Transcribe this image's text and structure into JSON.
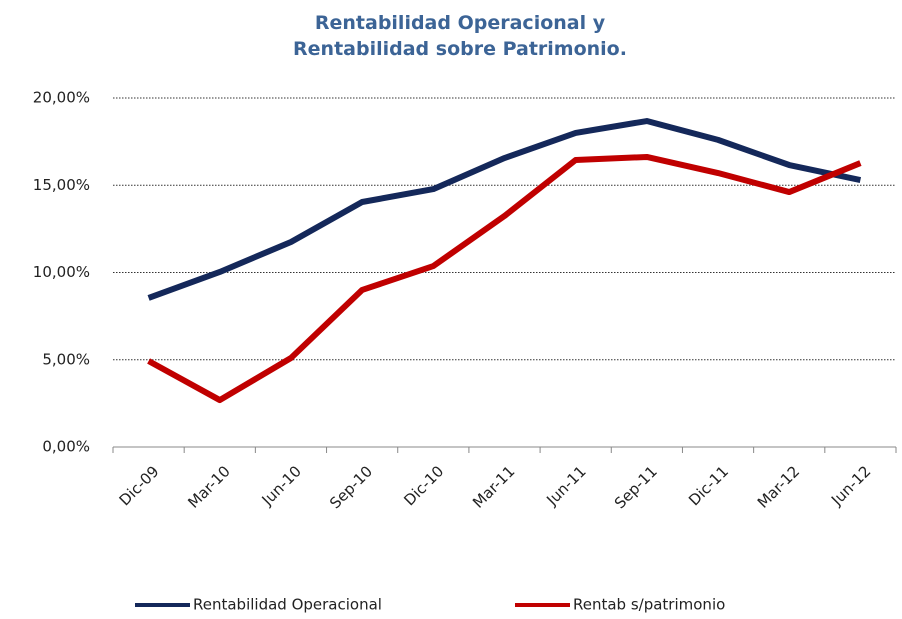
{
  "chart_data": {
    "type": "line",
    "title": "Rentabilidad Operacional y Rentabilidad sobre Patrimonio.",
    "categories": [
      "Dic-09",
      "Mar-10",
      "Jun-10",
      "Sep-10",
      "Dic-10",
      "Mar-11",
      "Jun-11",
      "Sep-11",
      "Dic-11",
      "Mar-12",
      "Jun-12"
    ],
    "series": [
      {
        "name": "Rentabilidad Operacional",
        "color": "#14285a",
        "values": [
          8.54,
          10.03,
          11.75,
          14.04,
          14.78,
          16.56,
          18.0,
          18.68,
          17.6,
          16.16,
          15.3
        ]
      },
      {
        "name": "Rentab s/patrimonio",
        "color": "#c00000",
        "values": [
          4.93,
          2.69,
          5.1,
          9.0,
          10.37,
          13.24,
          16.45,
          16.62,
          15.7,
          14.61,
          16.27
        ]
      }
    ],
    "ylim": [
      0,
      20
    ],
    "yticks": [
      {
        "value": 0,
        "label": "0,00%"
      },
      {
        "value": 5,
        "label": "5,00%"
      },
      {
        "value": 10,
        "label": "10,00%"
      },
      {
        "value": 15,
        "label": "15,00%"
      },
      {
        "value": 20,
        "label": "20,00%"
      }
    ],
    "grid": true,
    "legend": "bottom"
  }
}
